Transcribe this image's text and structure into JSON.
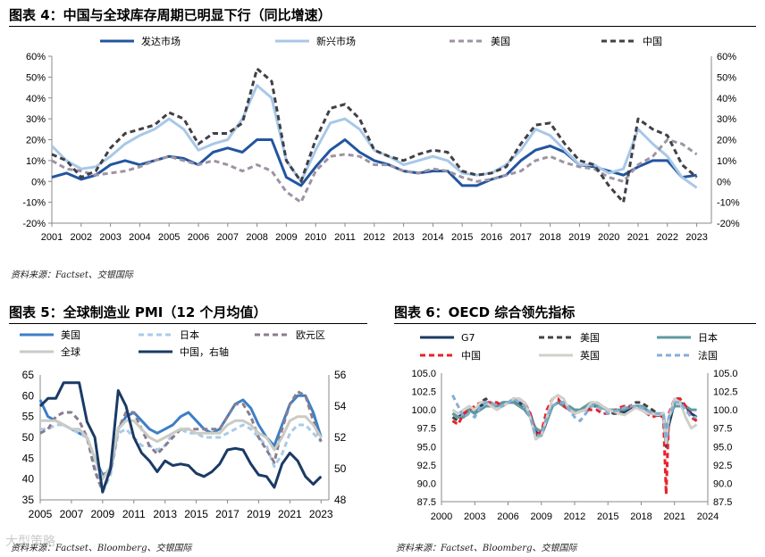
{
  "fig4": {
    "title": "图表 4：中国与全球库存周期已明显下行（同比增速）",
    "source": "资料来源：Factset、交银国际"
  },
  "fig5": {
    "title": "图表 5：全球制造业 PMI（12 个月均值）",
    "source": "资料来源：Factset、Bloomberg、交银国际"
  },
  "fig6": {
    "title": "图表 6：OECD 综合领先指标",
    "source": "资料来源：Factset、Bloomberg、交银国际"
  },
  "watermark": "大型策略",
  "chart_data": [
    {
      "id": "fig4",
      "type": "line",
      "x": [
        2001,
        2001.5,
        2002,
        2002.5,
        2003,
        2003.5,
        2004,
        2004.5,
        2005,
        2005.5,
        2006,
        2006.5,
        2007,
        2007.5,
        2008,
        2008.5,
        2009,
        2009.5,
        2010,
        2010.5,
        2011,
        2011.5,
        2012,
        2012.5,
        2013,
        2013.5,
        2014,
        2014.5,
        2015,
        2015.5,
        2016,
        2016.5,
        2017,
        2017.5,
        2018,
        2018.5,
        2019,
        2019.5,
        2020,
        2020.5,
        2021,
        2021.5,
        2022,
        2022.5,
        2023
      ],
      "series": [
        {
          "name": "发达市场",
          "color": "#2255a0",
          "dash": "",
          "width": 3,
          "values": [
            2,
            4,
            1,
            3,
            8,
            10,
            8,
            10,
            12,
            11,
            8,
            14,
            16,
            14,
            20,
            20,
            2,
            -2,
            7,
            15,
            20,
            14,
            10,
            8,
            5,
            4,
            5,
            5,
            -2,
            -2,
            1,
            3,
            10,
            15,
            17,
            14,
            8,
            7,
            5,
            3,
            7,
            10,
            10,
            2,
            3
          ]
        },
        {
          "name": "新兴市场",
          "color": "#a8c8e8",
          "dash": "",
          "width": 3,
          "values": [
            17,
            10,
            6,
            7,
            12,
            18,
            22,
            25,
            30,
            25,
            15,
            18,
            20,
            30,
            46,
            40,
            10,
            0,
            15,
            28,
            30,
            25,
            15,
            12,
            8,
            10,
            12,
            10,
            4,
            3,
            4,
            8,
            15,
            25,
            22,
            15,
            8,
            8,
            4,
            6,
            25,
            18,
            12,
            2,
            -3
          ]
        },
        {
          "name": "美国",
          "color": "#9e93a3",
          "dash": "6,4",
          "width": 3,
          "values": [
            10,
            6,
            5,
            3,
            4,
            5,
            7,
            10,
            12,
            10,
            8,
            10,
            8,
            5,
            8,
            5,
            -5,
            -10,
            5,
            12,
            13,
            12,
            8,
            8,
            5,
            4,
            6,
            5,
            2,
            0,
            1,
            3,
            5,
            10,
            12,
            9,
            7,
            6,
            2,
            0,
            8,
            12,
            20,
            18,
            13
          ]
        },
        {
          "name": "中国",
          "color": "#404046",
          "dash": "6,4",
          "width": 3,
          "values": [
            13,
            10,
            2,
            5,
            16,
            23,
            25,
            27,
            33,
            30,
            18,
            23,
            23,
            28,
            54,
            48,
            10,
            0,
            20,
            35,
            37,
            30,
            15,
            12,
            10,
            13,
            15,
            14,
            5,
            3,
            4,
            7,
            18,
            27,
            28,
            18,
            10,
            8,
            -2,
            -10,
            30,
            25,
            22,
            8,
            2
          ]
        }
      ],
      "ylim": [
        -20,
        60
      ],
      "yticks": [
        "60%",
        "50%",
        "40%",
        "30%",
        "20%",
        "10%",
        "0%",
        "-10%",
        "-20%"
      ],
      "xticks": [
        "2001",
        "2002",
        "2003",
        "2004",
        "2005",
        "2006",
        "2007",
        "2008",
        "2009",
        "2010",
        "2011",
        "2012",
        "2013",
        "2014",
        "2015",
        "2016",
        "2017",
        "2018",
        "2019",
        "2020",
        "2021",
        "2022",
        "2023"
      ],
      "legend_position": "top"
    },
    {
      "id": "fig5",
      "type": "line",
      "x": [
        2005,
        2005.5,
        2006,
        2006.5,
        2007,
        2007.5,
        2008,
        2008.5,
        2009,
        2009.5,
        2010,
        2010.5,
        2011,
        2011.5,
        2012,
        2012.5,
        2013,
        2013.5,
        2014,
        2014.5,
        2015,
        2015.5,
        2016,
        2016.5,
        2017,
        2017.5,
        2018,
        2018.5,
        2019,
        2019.5,
        2020,
        2020.5,
        2021,
        2021.5,
        2022,
        2022.5,
        2023
      ],
      "series": [
        {
          "name": "美国",
          "color": "#3d7fc6",
          "dash": "",
          "width": 3,
          "axis": "left",
          "values": [
            59,
            55,
            54,
            53,
            52,
            51,
            50,
            45,
            41,
            42,
            52,
            55,
            56,
            54,
            52,
            51,
            52,
            53,
            55,
            56,
            54,
            52,
            51,
            52,
            55,
            58,
            59,
            57,
            53,
            50,
            48,
            53,
            58,
            60,
            60,
            56,
            50
          ]
        },
        {
          "name": "日本",
          "color": "#a9cbe8",
          "dash": "6,4",
          "width": 3,
          "axis": "left",
          "values": [
            52,
            52,
            53,
            53,
            52,
            51,
            50,
            43,
            37,
            41,
            51,
            52,
            50,
            48,
            48,
            47,
            48,
            51,
            52,
            51,
            51,
            50,
            50,
            50,
            51,
            52,
            53,
            52,
            50,
            48,
            43,
            46,
            51,
            53,
            53,
            51,
            49
          ]
        },
        {
          "name": "欧元区",
          "color": "#8a7d8d",
          "dash": "6,4",
          "width": 3,
          "axis": "left",
          "values": [
            51,
            52,
            55,
            56,
            56,
            54,
            50,
            42,
            37,
            42,
            52,
            56,
            56,
            52,
            48,
            46,
            48,
            50,
            52,
            52,
            52,
            52,
            52,
            52,
            55,
            58,
            58,
            55,
            50,
            47,
            44,
            52,
            58,
            61,
            60,
            54,
            49
          ]
        },
        {
          "name": "全球",
          "color": "#cacbc4",
          "dash": "",
          "width": 3,
          "axis": "left",
          "values": [
            54,
            54,
            54,
            53,
            52,
            52,
            50,
            45,
            40,
            43,
            52,
            54,
            54,
            52,
            50,
            49,
            50,
            51,
            52,
            52,
            51,
            51,
            51,
            51,
            53,
            54,
            54,
            53,
            51,
            50,
            47,
            50,
            54,
            55,
            55,
            53,
            50
          ]
        },
        {
          "name": "中国，右轴",
          "color": "#1a3a65",
          "dash": "",
          "width": 3,
          "axis": "right",
          "values": [
            54,
            54.5,
            54.5,
            55.5,
            55.5,
            55.5,
            53,
            52,
            48.5,
            50,
            55,
            54,
            52,
            51,
            50.5,
            49.8,
            50.5,
            50.2,
            50.3,
            50.2,
            49.7,
            49.5,
            49.8,
            50.3,
            51.2,
            51.3,
            51.2,
            50.3,
            49.6,
            49.5,
            48.8,
            50.3,
            51,
            50.5,
            49.5,
            49,
            49.5
          ]
        }
      ],
      "ylim_left": [
        35,
        65
      ],
      "ylim_right": [
        48,
        56
      ],
      "yticks_left": [
        "65",
        "60",
        "55",
        "50",
        "45",
        "40",
        "35"
      ],
      "yticks_right": [
        "56",
        "54",
        "52",
        "50",
        "48"
      ],
      "xticks": [
        "2005",
        "2007",
        "2009",
        "2011",
        "2013",
        "2015",
        "2017",
        "2019",
        "2021",
        "2023"
      ],
      "legend_position": "top"
    },
    {
      "id": "fig6",
      "type": "line",
      "x": [
        2001,
        2001.5,
        2002,
        2002.5,
        2003,
        2003.5,
        2004,
        2004.5,
        2005,
        2005.5,
        2006,
        2006.5,
        2007,
        2007.5,
        2008,
        2008.5,
        2009,
        2009.5,
        2010,
        2010.5,
        2011,
        2011.5,
        2012,
        2012.5,
        2013,
        2013.5,
        2014,
        2014.5,
        2015,
        2015.5,
        2016,
        2016.5,
        2017,
        2017.5,
        2018,
        2018.5,
        2019,
        2019.5,
        2020,
        2020.25,
        2020.5,
        2021,
        2021.5,
        2022,
        2022.5,
        2023
      ],
      "series": [
        {
          "name": "G7",
          "color": "#1b3a63",
          "dash": "",
          "width": 3,
          "values": [
            99.5,
            99,
            99.5,
            100,
            99.5,
            100.5,
            101,
            100.5,
            100.5,
            101,
            101,
            101,
            101,
            100.5,
            99.5,
            97,
            96.5,
            98.5,
            100.5,
            101,
            101,
            100,
            99.5,
            99.8,
            100,
            100.5,
            100.5,
            100.3,
            100,
            99.8,
            99.5,
            99.7,
            100,
            100.5,
            100.5,
            100,
            99.5,
            99.2,
            99.5,
            95,
            98,
            101,
            101,
            100.5,
            99.5,
            99
          ]
        },
        {
          "name": "美国",
          "color": "#444444",
          "dash": "6,4",
          "width": 3,
          "values": [
            99,
            98.5,
            99.5,
            100,
            99.5,
            101,
            101.5,
            100.5,
            100.5,
            101,
            101,
            101.5,
            101,
            100,
            99,
            96.5,
            97,
            99,
            100.5,
            101,
            101,
            100,
            99.5,
            100,
            100.5,
            101,
            101,
            100.5,
            100,
            99.5,
            99.5,
            100,
            100.5,
            101,
            101,
            100.5,
            100,
            99.5,
            99,
            96,
            98.5,
            101.5,
            101.5,
            100.5,
            99,
            98.5
          ]
        },
        {
          "name": "日本",
          "color": "#5e9aa0",
          "dash": "",
          "width": 3,
          "values": [
            99.5,
            99,
            99,
            100,
            99.5,
            100,
            100.5,
            100.5,
            100.5,
            101,
            101,
            101,
            100.5,
            100,
            99,
            97.5,
            97,
            98.5,
            100.5,
            101,
            100.5,
            100.5,
            100,
            100,
            100.5,
            101,
            100.5,
            100.3,
            100,
            100,
            100,
            100,
            100.5,
            100.5,
            100.5,
            100,
            99.5,
            99.5,
            99.5,
            97,
            99,
            100.5,
            100.5,
            100.5,
            100,
            100
          ]
        },
        {
          "name": "中国",
          "color": "#e8222a",
          "dash": "6,4",
          "width": 3,
          "values": [
            98.5,
            98,
            99.5,
            100,
            100.5,
            101,
            101,
            101,
            101,
            100.5,
            101,
            101.5,
            101.5,
            101,
            99.5,
            96.5,
            97,
            100,
            101.5,
            101.5,
            100.5,
            100,
            99.5,
            99.8,
            100,
            100,
            100,
            99.5,
            99.5,
            99.8,
            100.3,
            100.5,
            100.5,
            100.3,
            100,
            99.5,
            99,
            99.3,
            99,
            88.5,
            99.5,
            101.5,
            101.5,
            100.5,
            99,
            98.5
          ]
        },
        {
          "name": "英国",
          "color": "#cfd0c8",
          "dash": "",
          "width": 3,
          "values": [
            100,
            99.5,
            100,
            100.5,
            100,
            101,
            101,
            100.5,
            100,
            100.5,
            101,
            101.5,
            101.5,
            101,
            99,
            96,
            96.5,
            99,
            101.5,
            102,
            101.5,
            100,
            99.5,
            99.8,
            100,
            101,
            101,
            100.5,
            100,
            99.8,
            99.5,
            99.3,
            99.8,
            100.3,
            100,
            99.5,
            99.5,
            99.3,
            99.5,
            95.5,
            99,
            101.5,
            101,
            99,
            97.5,
            98
          ]
        },
        {
          "name": "法国",
          "color": "#84aed8",
          "dash": "6,4",
          "width": 3,
          "values": [
            102,
            100.5,
            99,
            99.5,
            99,
            100.5,
            101,
            101,
            100.5,
            100.5,
            101,
            101.5,
            101,
            100.5,
            99,
            96.5,
            96.5,
            99,
            100.5,
            101,
            101,
            100,
            99,
            98.5,
            99.5,
            100.5,
            100.5,
            100,
            99.5,
            99.8,
            100,
            100.3,
            100.5,
            100.5,
            100.3,
            100,
            99.5,
            99.5,
            99.5,
            96,
            99,
            101,
            101,
            100,
            99,
            99
          ]
        }
      ],
      "ylim": [
        87.5,
        105
      ],
      "yticks": [
        "105.0",
        "102.5",
        "100.0",
        "97.5",
        "95.0",
        "92.5",
        "90.0",
        "87.5"
      ],
      "xticks": [
        "2000",
        "2003",
        "2006",
        "2009",
        "2012",
        "2015",
        "2018",
        "2021",
        "2024"
      ],
      "legend_position": "top"
    }
  ]
}
